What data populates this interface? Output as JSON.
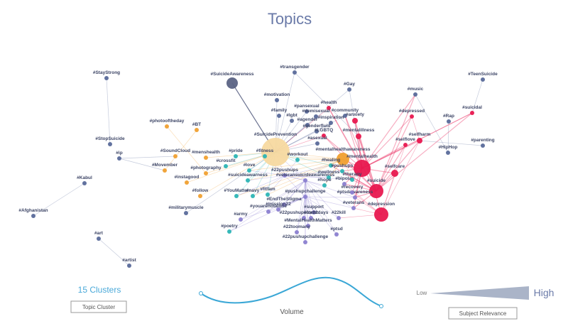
{
  "title": "Topics",
  "nodes": [
    {
      "label": "#SuicideAwareness"
    },
    {
      "label": "#transgender"
    },
    {
      "label": "#StayStrong"
    },
    {
      "label": "#TeenSuicide"
    },
    {
      "label": "#Gay"
    },
    {
      "label": "#motivation"
    },
    {
      "label": "#health"
    },
    {
      "label": "#music"
    },
    {
      "label": "#suicidal"
    },
    {
      "label": "#pansexual"
    },
    {
      "label": "#demisexual"
    },
    {
      "label": "#community"
    },
    {
      "label": "#anxiety"
    },
    {
      "label": "#family"
    },
    {
      "label": "#depressed"
    },
    {
      "label": "#Rap"
    },
    {
      "label": "#lgbt"
    },
    {
      "label": "#inspiration"
    },
    {
      "label": "#agender"
    },
    {
      "label": "#genderfluid"
    },
    {
      "label": "#photooftheday"
    },
    {
      "label": "#BT"
    },
    {
      "label": "#LGBTQ"
    },
    {
      "label": "#mentalillness"
    },
    {
      "label": "#selfharm"
    },
    {
      "label": "#SuicidePrevention"
    },
    {
      "label": "#asexual"
    },
    {
      "label": "#selflove"
    },
    {
      "label": "#parenting"
    },
    {
      "label": "#StopSuicide"
    },
    {
      "label": "#HipHop"
    },
    {
      "label": "#mentalhealthawareness"
    },
    {
      "label": "#mentalhealth"
    },
    {
      "label": "#SoundCloud"
    },
    {
      "label": "#menshealth"
    },
    {
      "label": "#fitness"
    },
    {
      "label": "#workout"
    },
    {
      "label": "#pride"
    },
    {
      "label": "#ip"
    },
    {
      "label": "#crossfit"
    },
    {
      "label": "#healing"
    },
    {
      "label": "#selfcare"
    },
    {
      "label": "#love"
    },
    {
      "label": "#Movember"
    },
    {
      "label": "#photography"
    },
    {
      "label": "#instagood"
    },
    {
      "label": "#pushups"
    },
    {
      "label": "#22pushups"
    },
    {
      "label": "#veteransuicideawareness"
    },
    {
      "label": "#wellness"
    },
    {
      "label": "#suicideawarness"
    },
    {
      "label": "#hope"
    },
    {
      "label": "#bipolar"
    },
    {
      "label": "#therapy"
    },
    {
      "label": "#suicide"
    },
    {
      "label": "#Kabul"
    },
    {
      "label": "#follow"
    },
    {
      "label": "#YouMatter"
    },
    {
      "label": "#navy"
    },
    {
      "label": "#fitfam"
    },
    {
      "label": "#pushupchallenge"
    },
    {
      "label": "#ptsdawareness"
    },
    {
      "label": "#recovery"
    },
    {
      "label": "#EndTheStigma"
    },
    {
      "label": "#mission22"
    },
    {
      "label": "#depression"
    },
    {
      "label": "#veterans"
    },
    {
      "label": "#support"
    },
    {
      "label": "#usmc"
    },
    {
      "label": "#militarymuscle"
    },
    {
      "label": "#youarenotalone"
    },
    {
      "label": "#22kill"
    },
    {
      "label": "#Afghanistan"
    },
    {
      "label": "#army"
    },
    {
      "label": "#22pushupsfor22days"
    },
    {
      "label": "#MentalHealthMatters"
    },
    {
      "label": "#22toomany"
    },
    {
      "label": "#poetry"
    },
    {
      "label": "#ptsd"
    },
    {
      "label": "#22pushupchallenge"
    },
    {
      "label": "#art"
    },
    {
      "label": "#artist"
    }
  ],
  "legend": {
    "clusters": "15 Clusters",
    "cluster_button": "Topic Cluster",
    "volume": "Volume",
    "low": "Low",
    "high": "High",
    "relevance_button": "Subject Relevance"
  }
}
